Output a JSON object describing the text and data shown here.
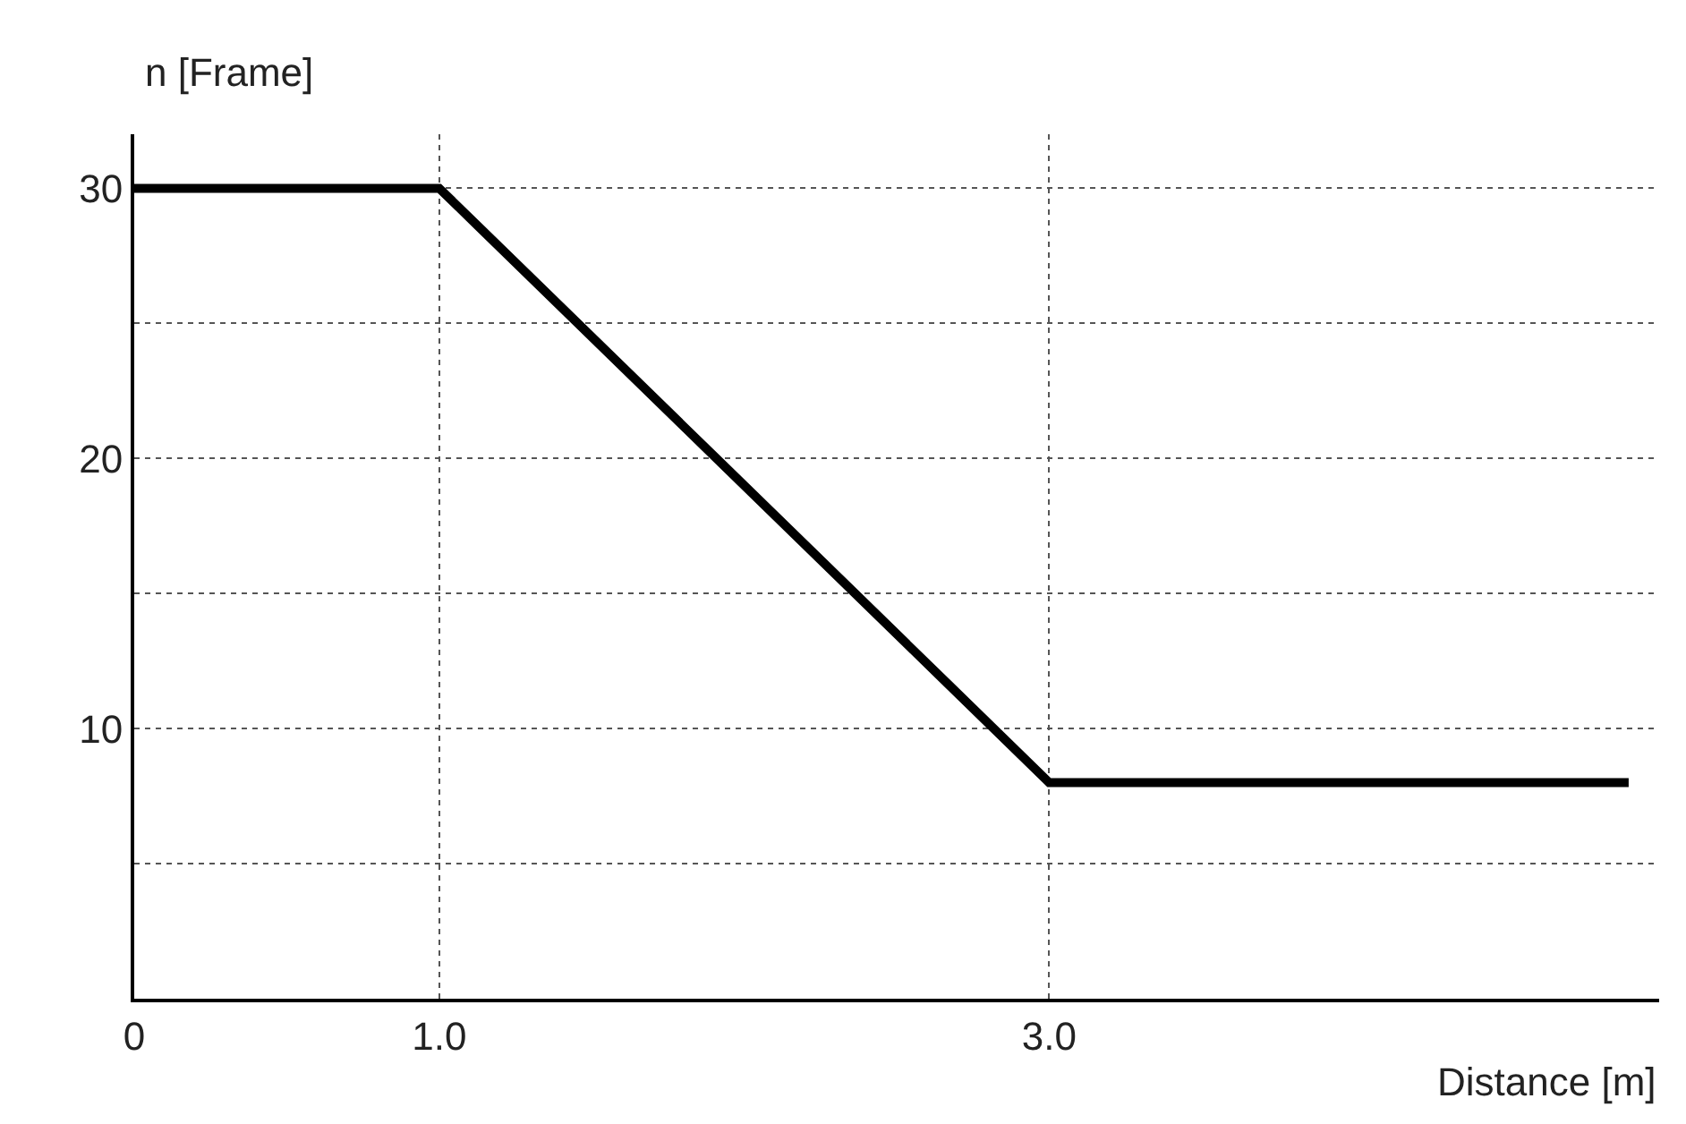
{
  "chart_data": {
    "type": "line",
    "xlabel": "Distance [m]",
    "ylabel": "n [Frame]",
    "x": [
      0,
      1.0,
      3.0,
      4.9
    ],
    "series": [
      {
        "color": "#000000",
        "values": [
          30,
          30,
          8,
          8
        ]
      }
    ],
    "xlim": [
      0,
      5.0
    ],
    "ylim": [
      0,
      32
    ],
    "xticks": [
      0,
      {
        "value": 1,
        "label": "1.0"
      },
      {
        "value": 3,
        "label": "3.0"
      }
    ],
    "yticks": [
      {
        "value": 5,
        "label": null
      },
      10,
      {
        "value": 15,
        "label": null
      },
      20,
      {
        "value": 25,
        "label": null
      },
      30
    ],
    "grid": true,
    "marker": "none",
    "line_style": "solid"
  }
}
